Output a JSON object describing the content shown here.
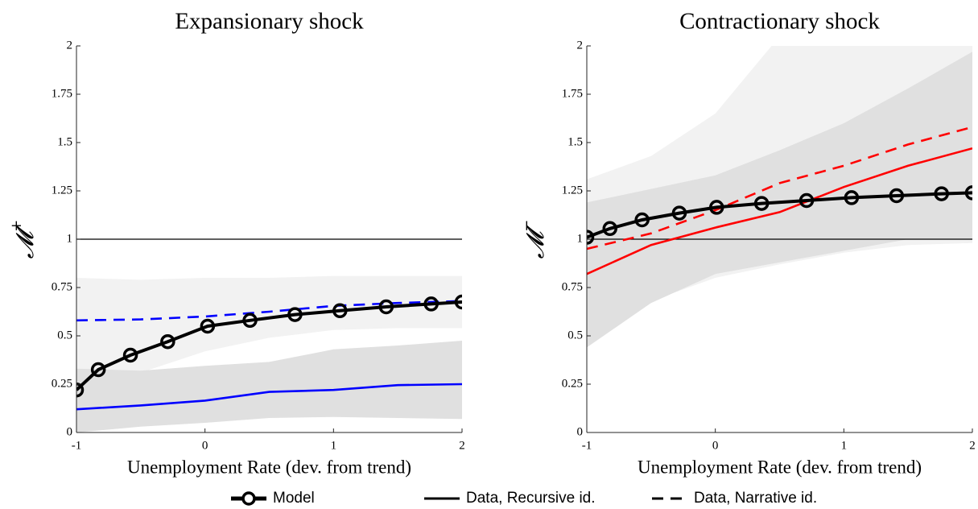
{
  "chart_data": [
    {
      "type": "line",
      "title": "Expansionary shock",
      "xlabel": "Unemployment Rate (dev. from trend)",
      "ylabel": "𝓜",
      "ylabel_sup": "+",
      "xlim": [
        -1,
        2
      ],
      "ylim": [
        0,
        2
      ],
      "xticks": [
        -1,
        0,
        1,
        2
      ],
      "yticks": [
        0,
        0.25,
        0.5,
        0.75,
        1,
        1.25,
        1.5,
        1.75,
        2
      ],
      "hline": 1,
      "bands": [
        {
          "color": "#f2f2f2",
          "x": [
            -1,
            -0.5,
            0,
            0.5,
            1,
            1.5,
            2
          ],
          "upper": [
            0.8,
            0.79,
            0.8,
            0.8,
            0.81,
            0.81,
            0.81
          ],
          "lower": [
            0.33,
            0.31,
            0.42,
            0.49,
            0.53,
            0.54,
            0.54
          ]
        },
        {
          "color": "#e0e0e0",
          "x": [
            -1,
            -0.5,
            0,
            0.5,
            1,
            1.5,
            2
          ],
          "upper": [
            0.33,
            0.32,
            0.345,
            0.365,
            0.43,
            0.45,
            0.475
          ],
          "lower": [
            0,
            0.03,
            0.05,
            0.075,
            0.08,
            0.075,
            0.07
          ]
        }
      ],
      "series": [
        {
          "style": "solid",
          "color": "#0000ff",
          "x": [
            -1,
            -0.5,
            0,
            0.5,
            1,
            1.5,
            2
          ],
          "values": [
            0.12,
            0.14,
            0.165,
            0.21,
            0.22,
            0.245,
            0.25
          ]
        },
        {
          "style": "dashed",
          "color": "#0000ff",
          "x": [
            -1,
            -0.5,
            0,
            0.5,
            1,
            1.5,
            2
          ],
          "values": [
            0.58,
            0.585,
            0.6,
            0.625,
            0.655,
            0.67,
            0.68
          ]
        },
        {
          "style": "model",
          "color": "#000000",
          "x": [
            -1,
            -0.83,
            -0.58,
            -0.29,
            0.02,
            0.35,
            0.7,
            1.05,
            1.41,
            1.76,
            2
          ],
          "values": [
            0.22,
            0.325,
            0.4,
            0.47,
            0.55,
            0.58,
            0.61,
            0.63,
            0.65,
            0.665,
            0.675
          ]
        }
      ]
    },
    {
      "type": "line",
      "title": "Contractionary shock",
      "xlabel": "Unemployment Rate (dev. from trend)",
      "ylabel": "𝓜",
      "ylabel_sup": "−",
      "xlim": [
        -1,
        2
      ],
      "ylim": [
        0,
        2
      ],
      "xticks": [
        -1,
        0,
        1,
        2
      ],
      "yticks": [
        0,
        0.25,
        0.5,
        0.75,
        1,
        1.25,
        1.5,
        1.75,
        2
      ],
      "hline": 1,
      "bands": [
        {
          "color": "#f2f2f2",
          "x": [
            -1,
            -0.5,
            0,
            0.5,
            1,
            1.5,
            2
          ],
          "upper": [
            1.31,
            1.43,
            1.65,
            2.05,
            2.3,
            2.5,
            2.7
          ],
          "lower": [
            0.44,
            0.68,
            0.8,
            0.87,
            0.93,
            0.97,
            0.98
          ]
        },
        {
          "color": "#e0e0e0",
          "x": [
            -1,
            -0.5,
            0,
            0.5,
            1,
            1.5,
            2
          ],
          "upper": [
            1.19,
            1.26,
            1.33,
            1.46,
            1.6,
            1.78,
            1.97
          ],
          "lower": [
            0.44,
            0.67,
            0.82,
            0.88,
            0.94,
            1.0,
            1.0
          ]
        }
      ],
      "series": [
        {
          "style": "solid",
          "color": "#ff0000",
          "x": [
            -1,
            -0.5,
            0,
            0.5,
            1,
            1.5,
            2
          ],
          "values": [
            0.82,
            0.97,
            1.06,
            1.14,
            1.27,
            1.38,
            1.47
          ]
        },
        {
          "style": "dashed",
          "color": "#ff0000",
          "x": [
            -1,
            -0.5,
            0,
            0.5,
            1,
            1.5,
            2
          ],
          "values": [
            0.95,
            1.03,
            1.15,
            1.29,
            1.38,
            1.49,
            1.58
          ]
        },
        {
          "style": "model",
          "color": "#000000",
          "x": [
            -1,
            -0.82,
            -0.57,
            -0.28,
            0.01,
            0.36,
            0.71,
            1.06,
            1.41,
            1.76,
            2
          ],
          "values": [
            1.01,
            1.055,
            1.1,
            1.135,
            1.165,
            1.185,
            1.2,
            1.215,
            1.225,
            1.235,
            1.24
          ]
        }
      ]
    }
  ],
  "legend": [
    {
      "name": "Model",
      "style": "model"
    },
    {
      "name": "Data, Recursive id.",
      "style": "solid"
    },
    {
      "name": "Data, Narrative id.",
      "style": "dashed"
    }
  ]
}
